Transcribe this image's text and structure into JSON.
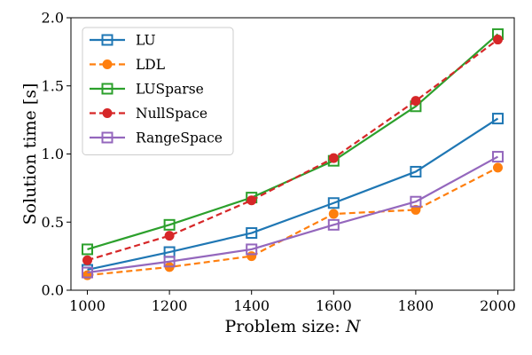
{
  "chart_data": {
    "type": "line",
    "xlabel": "Problem size: N",
    "ylabel": "Solution time [s]",
    "x": [
      1000,
      1200,
      1400,
      1600,
      1800,
      2000
    ],
    "xlim": [
      960,
      2040
    ],
    "ylim": [
      0.0,
      2.0
    ],
    "xticks": [
      "1000",
      "1200",
      "1400",
      "1600",
      "1800",
      "2000"
    ],
    "yticks": [
      "0.0",
      "0.5",
      "1.0",
      "1.5",
      "2.0"
    ],
    "ytick_values": [
      0.0,
      0.5,
      1.0,
      1.5,
      2.0
    ],
    "legend_position": "top-left",
    "grid": false,
    "series": [
      {
        "name": "LU",
        "values": [
          0.15,
          0.28,
          0.42,
          0.64,
          0.87,
          1.26
        ],
        "color": "#1f77b4",
        "dash": "solid",
        "marker": "square-open"
      },
      {
        "name": "LDL",
        "values": [
          0.11,
          0.17,
          0.25,
          0.56,
          0.59,
          0.9
        ],
        "color": "#ff7f0e",
        "dash": "dashed",
        "marker": "circle"
      },
      {
        "name": "LUSparse",
        "values": [
          0.3,
          0.48,
          0.68,
          0.95,
          1.35,
          1.88
        ],
        "color": "#2ca02c",
        "dash": "solid",
        "marker": "square-open"
      },
      {
        "name": "NullSpace",
        "values": [
          0.22,
          0.4,
          0.66,
          0.97,
          1.39,
          1.84
        ],
        "color": "#d62728",
        "dash": "dashed",
        "marker": "circle"
      },
      {
        "name": "RangeSpace",
        "values": [
          0.13,
          0.21,
          0.3,
          0.48,
          0.65,
          0.98
        ],
        "color": "#9467bd",
        "dash": "solid",
        "marker": "square-open"
      }
    ]
  }
}
